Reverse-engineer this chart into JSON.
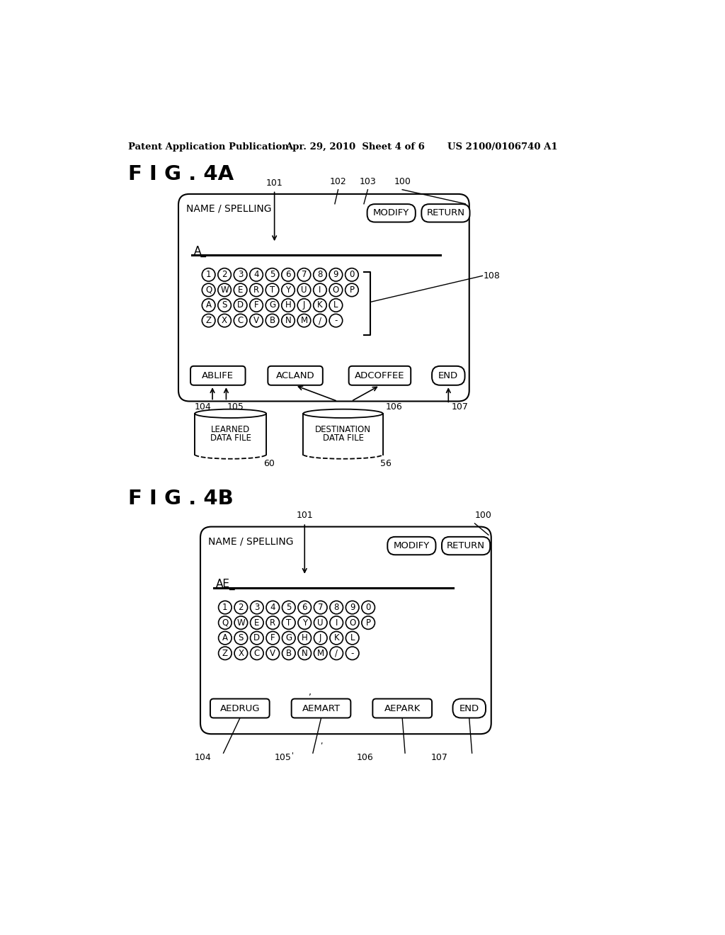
{
  "bg_color": "#ffffff",
  "header_left": "Patent Application Publication",
  "header_center": "Apr. 29, 2010  Sheet 4 of 6",
  "header_right": "US 2100/0106740 A1",
  "fig4a_label": "F I G . 4A",
  "fig4b_label": "F I G . 4B",
  "keyboard_rows_4a": [
    [
      "1",
      "2",
      "3",
      "4",
      "5",
      "6",
      "7",
      "8",
      "9",
      "0"
    ],
    [
      "Q",
      "W",
      "E",
      "R",
      "T",
      "Y",
      "U",
      "I",
      "O",
      "P"
    ],
    [
      "A",
      "S",
      "D",
      "F",
      "G",
      "H",
      "J",
      "K",
      "L",
      ""
    ],
    [
      "Z",
      "X",
      "C",
      "V",
      "B",
      "N",
      "M",
      "/",
      "-",
      ""
    ]
  ],
  "keyboard_rows_4b": [
    [
      "1",
      "2",
      "3",
      "4",
      "5",
      "6",
      "7",
      "8",
      "9",
      "0"
    ],
    [
      "Q",
      "W",
      "E",
      "R",
      "T",
      "Y",
      "U",
      "I",
      "O",
      "P"
    ],
    [
      "A",
      "S",
      "D",
      "F",
      "G",
      "H",
      "J",
      "K",
      "L",
      ""
    ],
    [
      "Z",
      "X",
      "C",
      "V",
      "B",
      "N",
      "M",
      "/",
      "-",
      ""
    ]
  ]
}
